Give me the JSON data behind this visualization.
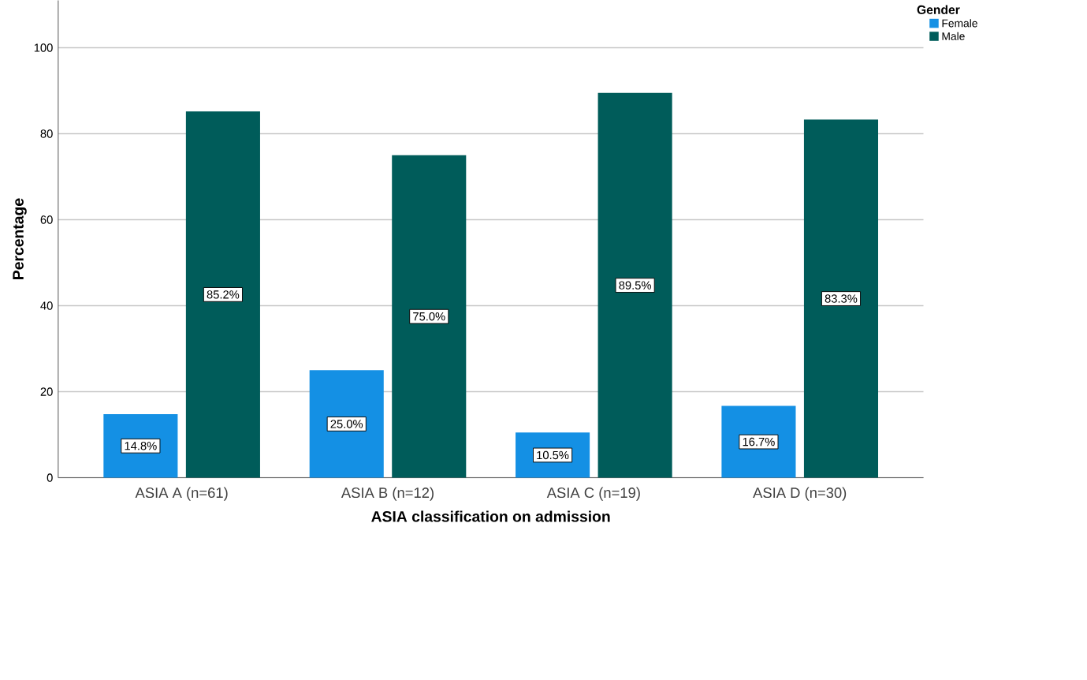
{
  "chart_data": {
    "type": "bar",
    "xlabel": "ASIA classification on admission",
    "ylabel": "Percentage",
    "legend_title": "Gender",
    "categories": [
      "ASIA A (n=61)",
      "ASIA B (n=12)",
      "ASIA C (n=19)",
      "ASIA D (n=30)"
    ],
    "series": [
      {
        "name": "Female",
        "color": "#1490e4",
        "values": [
          14.8,
          25.0,
          10.5,
          16.7
        ],
        "value_labels": [
          "14.8%",
          "25.0%",
          "10.5%",
          "16.7%"
        ]
      },
      {
        "name": "Male",
        "color": "#005c5a",
        "values": [
          85.2,
          75.0,
          89.5,
          83.3
        ],
        "value_labels": [
          "85.2%",
          "75.0%",
          "89.5%",
          "83.3%"
        ]
      }
    ],
    "ylim": [
      0,
      111
    ],
    "yticks": [
      0,
      20,
      40,
      60,
      80,
      100
    ],
    "grid": "y",
    "legend": "top right"
  }
}
